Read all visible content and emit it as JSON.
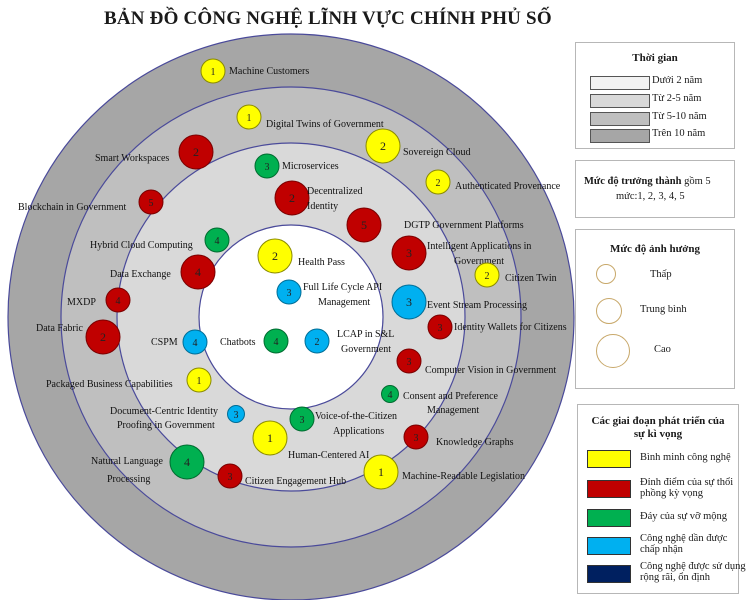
{
  "title": "BẢN ĐỒ CÔNG NGHỆ LĨNH VỰC CHÍNH PHỦ SỐ",
  "colors": {
    "ring_outer": "#a6a6a6",
    "ring_3": "#bfbfbf",
    "ring_2": "#d9d9d9",
    "ring_1": "#ffffff",
    "yellow": "#ffff00",
    "red": "#c00000",
    "green": "#00b050",
    "blue": "#00b0f0",
    "navy": "#002060"
  },
  "time_legend": {
    "title": "Thời gian",
    "items": [
      {
        "label": "Dưới 2 năm",
        "color": "#f2f2f2"
      },
      {
        "label": "Từ 2-5 năm",
        "color": "#d9d9d9"
      },
      {
        "label": "Từ 5-10  năm",
        "color": "#bfbfbf"
      },
      {
        "label": "Trên 10 năm",
        "color": "#a6a6a6"
      }
    ]
  },
  "maturity": {
    "title": "Mức độ trưởng thành",
    "text": " gồm 5",
    "text2": "mức:1, 2, 3, 4, 5"
  },
  "impact_legend": {
    "title": "Mức độ ảnh hưởng",
    "items": [
      {
        "label": "Thấp",
        "size": "small"
      },
      {
        "label": "Trung bình",
        "size": "medium"
      },
      {
        "label": "Cao",
        "size": "large"
      }
    ]
  },
  "stage_legend": {
    "title": "Các giai đoạn phát triển của sự kì vọng",
    "items": [
      {
        "label": "Bình minh công nghệ",
        "color": "#ffff00"
      },
      {
        "label": "Đỉnh điểm của sự thổi phồng kỳ vọng",
        "color": "#c00000"
      },
      {
        "label": "Đáy của sự vỡ mộng",
        "color": "#00b050"
      },
      {
        "label": "Công nghệ dần được chấp nhận",
        "color": "#00b0f0"
      },
      {
        "label": "Công nghệ được sử dụng rộng rãi, ổn định",
        "color": "#002060"
      }
    ]
  },
  "chart_data": {
    "type": "radar",
    "rings": [
      "Dưới 2 năm",
      "Từ 2-5 năm",
      "Từ 5-10  năm",
      "Trên 10 năm"
    ],
    "technologies": [
      {
        "name": "Machine Customers",
        "level": "1",
        "stage": "yellow",
        "impact": "medium"
      },
      {
        "name": "Digital Twins of Government",
        "level": "1",
        "stage": "yellow",
        "impact": "medium"
      },
      {
        "name": "Sovereign Cloud",
        "level": "2",
        "stage": "yellow",
        "impact": "large"
      },
      {
        "name": "Smart Workspaces",
        "level": "2",
        "stage": "red",
        "impact": "large"
      },
      {
        "name": "Microservices",
        "level": "3",
        "stage": "green",
        "impact": "medium"
      },
      {
        "name": "Authenticated Provenance",
        "level": "2",
        "stage": "yellow",
        "impact": "medium"
      },
      {
        "name": "Decentralized Identity",
        "level": "2",
        "stage": "red",
        "impact": "large"
      },
      {
        "name": "Blockchain in Government",
        "level": "5",
        "stage": "red",
        "impact": "medium"
      },
      {
        "name": "DGTP Government Platforms",
        "level": "5",
        "stage": "red",
        "impact": "large"
      },
      {
        "name": "Hybrid Cloud Computing",
        "level": "4",
        "stage": "green",
        "impact": "medium"
      },
      {
        "name": "Intelligent Applications in Government",
        "level": "3",
        "stage": "red",
        "impact": "large"
      },
      {
        "name": "Health Pass",
        "level": "2",
        "stage": "yellow",
        "impact": "large"
      },
      {
        "name": "Citizen Twin",
        "level": "2",
        "stage": "yellow",
        "impact": "medium"
      },
      {
        "name": "Data Exchange",
        "level": "4",
        "stage": "red",
        "impact": "large"
      },
      {
        "name": "Full Life Cycle API Management",
        "level": "3",
        "stage": "blue",
        "impact": "medium"
      },
      {
        "name": "MXDP",
        "level": "4",
        "stage": "red",
        "impact": "medium"
      },
      {
        "name": "Event Stream Processing",
        "level": "3",
        "stage": "blue",
        "impact": "large"
      },
      {
        "name": "Data Fabric",
        "level": "2",
        "stage": "red",
        "impact": "large"
      },
      {
        "name": "Identity Wallets for Citizens",
        "level": "3",
        "stage": "red",
        "impact": "medium"
      },
      {
        "name": "CSPM",
        "level": "4",
        "stage": "blue",
        "impact": "medium"
      },
      {
        "name": "Chatbots",
        "level": "4",
        "stage": "green",
        "impact": "medium"
      },
      {
        "name": "LCAP in S&L Government",
        "level": "2",
        "stage": "blue",
        "impact": "medium"
      },
      {
        "name": "Computer Vision in Government",
        "level": "3",
        "stage": "red",
        "impact": "medium"
      },
      {
        "name": "Packaged Business Capabilities",
        "level": "1",
        "stage": "yellow",
        "impact": "medium"
      },
      {
        "name": "Consent and Preference Management",
        "level": "4",
        "stage": "green",
        "impact": "small"
      },
      {
        "name": "Document-Centric Identity Proofing in Government",
        "level": "3",
        "stage": "blue",
        "impact": "small"
      },
      {
        "name": "Voice-of-the-Citizen Applications",
        "level": "3",
        "stage": "green",
        "impact": "medium"
      },
      {
        "name": "Human-Centered AI",
        "level": "1",
        "stage": "yellow",
        "impact": "large"
      },
      {
        "name": "Knowledge Graphs",
        "level": "3",
        "stage": "red",
        "impact": "medium"
      },
      {
        "name": "Natural Language Processing",
        "level": "4",
        "stage": "green",
        "impact": "large"
      },
      {
        "name": "Citizen Engagement Hub",
        "level": "3",
        "stage": "red",
        "impact": "medium"
      },
      {
        "name": "Machine-Readable Legislation",
        "level": "1",
        "stage": "yellow",
        "impact": "large"
      }
    ]
  }
}
